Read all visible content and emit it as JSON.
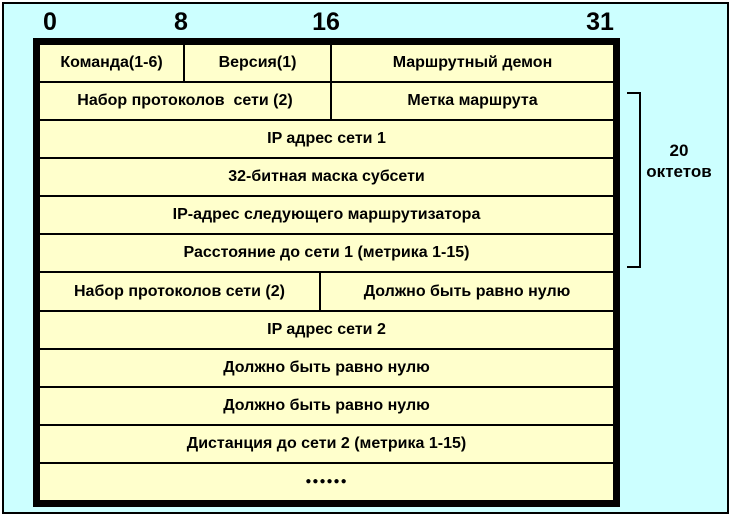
{
  "diagram": {
    "title_semantic": "RIP packet format diagram",
    "colors": {
      "background": "#ccffff",
      "cell_fill": "#ffffcc",
      "line": "#000000"
    },
    "bit_labels": [
      "0",
      "8",
      "16",
      "31"
    ],
    "rows": [
      {
        "cells": [
          {
            "label": "Команда(1-6)"
          },
          {
            "label": "Версия(1)"
          },
          {
            "label": "Маршрутный демон"
          }
        ]
      },
      {
        "cells": [
          {
            "label": "Набор протоколов  сети (2)"
          },
          {
            "label": "Метка маршрута"
          }
        ]
      },
      {
        "cells": [
          {
            "label": "IP адрес сети 1"
          }
        ]
      },
      {
        "cells": [
          {
            "label": "32-битная маска субсети"
          }
        ]
      },
      {
        "cells": [
          {
            "label": "IP-адрес следующего маршрутизатора"
          }
        ]
      },
      {
        "cells": [
          {
            "label": "Расстояние до сети 1 (метрика 1-15)"
          }
        ]
      },
      {
        "cells": [
          {
            "label": "Набор протоколов сети (2)"
          },
          {
            "label": "Должно быть равно нулю"
          }
        ]
      },
      {
        "cells": [
          {
            "label": "IP адрес сети 2"
          }
        ]
      },
      {
        "cells": [
          {
            "label": "Должно быть равно нулю"
          }
        ]
      },
      {
        "cells": [
          {
            "label": "Должно быть равно нулю"
          }
        ]
      },
      {
        "cells": [
          {
            "label": "Дистанция до сети 2 (метрика 1-15)"
          }
        ]
      },
      {
        "cells": [
          {
            "label": "●●●●●●"
          }
        ]
      }
    ],
    "bracket": {
      "label_line1": "20",
      "label_line2": "октетов"
    }
  }
}
